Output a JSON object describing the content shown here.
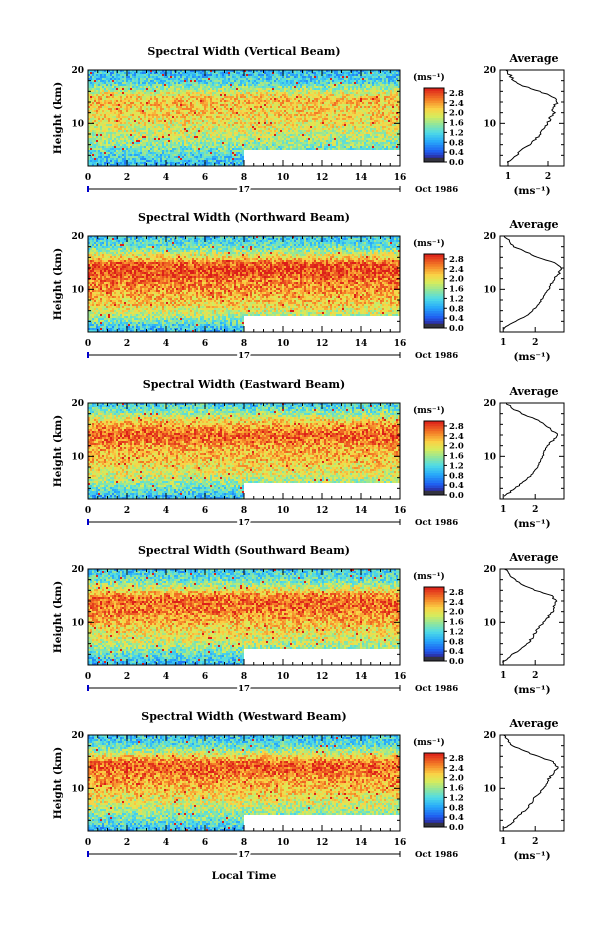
{
  "x_axis_title": "Local Time",
  "chart_data": [
    {
      "type": "heatmap",
      "title": "Spectral Width (Vertical Beam)",
      "ylabel": "Height (km)",
      "ylim": [
        2,
        20
      ],
      "yticks": [
        10,
        20
      ],
      "xlim": [
        0,
        16
      ],
      "xticks": [
        0,
        2,
        4,
        6,
        8,
        10,
        12,
        14,
        16
      ],
      "xtick_labels": [
        "0",
        "2",
        "4",
        "6",
        "8",
        "10",
        "12",
        "14",
        "16"
      ],
      "date_day": "17",
      "date_label": "Oct 1986",
      "no_data_region": {
        "x_from": 8,
        "x_to": 16,
        "y_from": 2,
        "y_to": 5
      },
      "colorbar": {
        "unit_label": "(ms⁻¹)",
        "min": 0,
        "max": 3.0,
        "ticks": [
          "2.8",
          "2.4",
          "2.0",
          "1.6",
          "1.2",
          "0.8",
          "0.4",
          "0.0"
        ]
      },
      "average_profile": {
        "title": "Average",
        "xlabel": "(ms⁻¹)",
        "xlim": [
          0.8,
          2.4
        ],
        "xticks": [
          "1",
          "2"
        ],
        "xtick_values": [
          1,
          2
        ],
        "yticks": [
          "10",
          "20"
        ],
        "heights": [
          2.5,
          3,
          4,
          5,
          6,
          7,
          8,
          9,
          10,
          11,
          12,
          13,
          14,
          15,
          16,
          17,
          18,
          19,
          20
        ],
        "values": [
          1.0,
          1.05,
          1.2,
          1.35,
          1.55,
          1.7,
          1.8,
          1.9,
          2.0,
          2.05,
          2.15,
          2.1,
          2.25,
          2.1,
          1.8,
          1.4,
          1.15,
          1.05,
          0.95
        ]
      }
    },
    {
      "type": "heatmap",
      "title": "Spectral Width (Northward Beam)",
      "ylabel": "Height (km)",
      "ylim": [
        2,
        20
      ],
      "yticks": [
        10,
        20
      ],
      "xlim": [
        0,
        16
      ],
      "xticks": [
        0,
        2,
        4,
        6,
        8,
        10,
        12,
        14,
        16
      ],
      "xtick_labels": [
        "0",
        "2",
        "4",
        "6",
        "8",
        "10",
        "12",
        "14",
        "16"
      ],
      "date_day": "17",
      "date_label": "Oct 1986",
      "no_data_region": {
        "x_from": 8,
        "x_to": 16,
        "y_from": 2,
        "y_to": 5
      },
      "colorbar": {
        "unit_label": "(ms⁻¹)",
        "min": 0,
        "max": 3.0,
        "ticks": [
          "2.8",
          "2.4",
          "2.0",
          "1.6",
          "1.2",
          "0.8",
          "0.4",
          "0.0"
        ]
      },
      "average_profile": {
        "title": "Average",
        "xlabel": "(ms⁻¹)",
        "xlim": [
          0.9,
          2.9
        ],
        "xticks": [
          "1",
          "2"
        ],
        "xtick_values": [
          1,
          2
        ],
        "yticks": [
          "10",
          "20"
        ],
        "heights": [
          2.5,
          3,
          4,
          5,
          6,
          7,
          8,
          9,
          10,
          11,
          12,
          13,
          14,
          15,
          16,
          17,
          18,
          19,
          20
        ],
        "values": [
          1.0,
          1.1,
          1.4,
          1.7,
          1.9,
          2.1,
          2.2,
          2.3,
          2.45,
          2.5,
          2.6,
          2.75,
          2.8,
          2.6,
          2.1,
          1.7,
          1.35,
          1.2,
          1.05
        ]
      }
    },
    {
      "type": "heatmap",
      "title": "Spectral Width (Eastward Beam)",
      "ylabel": "Height (km)",
      "ylim": [
        2,
        20
      ],
      "yticks": [
        10,
        20
      ],
      "xlim": [
        0,
        16
      ],
      "xticks": [
        0,
        2,
        4,
        6,
        8,
        10,
        12,
        14,
        16
      ],
      "xtick_labels": [
        "0",
        "2",
        "4",
        "6",
        "8",
        "10",
        "12",
        "14",
        "16"
      ],
      "date_day": "17",
      "date_label": "Oct 1986",
      "no_data_region": {
        "x_from": 8,
        "x_to": 16,
        "y_from": 2,
        "y_to": 5
      },
      "colorbar": {
        "unit_label": "(ms⁻¹)",
        "min": 0,
        "max": 3.0,
        "ticks": [
          "2.8",
          "2.4",
          "2.0",
          "1.6",
          "1.2",
          "0.8",
          "0.4",
          "0.0"
        ]
      },
      "average_profile": {
        "title": "Average",
        "xlabel": "(ms⁻¹)",
        "xlim": [
          0.9,
          2.9
        ],
        "xticks": [
          "1",
          "2"
        ],
        "xtick_values": [
          1,
          2
        ],
        "yticks": [
          "10",
          "20"
        ],
        "heights": [
          2.5,
          3,
          4,
          5,
          6,
          7,
          8,
          9,
          10,
          11,
          12,
          13,
          14,
          15,
          16,
          17,
          18,
          19,
          20
        ],
        "values": [
          1.0,
          1.15,
          1.35,
          1.6,
          1.8,
          1.95,
          2.05,
          2.15,
          2.25,
          2.3,
          2.4,
          2.55,
          2.7,
          2.5,
          2.3,
          2.0,
          1.6,
          1.3,
          1.1
        ]
      }
    },
    {
      "type": "heatmap",
      "title": "Spectral Width (Southward Beam)",
      "ylabel": "Height (km)",
      "ylim": [
        2,
        20
      ],
      "yticks": [
        10,
        20
      ],
      "xlim": [
        0,
        16
      ],
      "xticks": [
        0,
        2,
        4,
        6,
        8,
        10,
        12,
        14,
        16
      ],
      "xtick_labels": [
        "0",
        "2",
        "4",
        "6",
        "8",
        "10",
        "12",
        "14",
        "16"
      ],
      "date_day": "17",
      "date_label": "Oct 1986",
      "no_data_region": {
        "x_from": 8,
        "x_to": 16,
        "y_from": 2,
        "y_to": 5
      },
      "colorbar": {
        "unit_label": "(ms⁻¹)",
        "min": 0,
        "max": 3.0,
        "ticks": [
          "2.8",
          "2.4",
          "2.0",
          "1.6",
          "1.2",
          "0.8",
          "0.4",
          "0.0"
        ]
      },
      "average_profile": {
        "title": "Average",
        "xlabel": "(ms⁻¹)",
        "xlim": [
          0.9,
          2.9
        ],
        "xticks": [
          "1",
          "2"
        ],
        "xtick_values": [
          1,
          2
        ],
        "yticks": [
          "10",
          "20"
        ],
        "heights": [
          2.5,
          3,
          4,
          5,
          6,
          7,
          8,
          9,
          10,
          11,
          12,
          13,
          14,
          15,
          16,
          17,
          18,
          19,
          20
        ],
        "values": [
          1.0,
          1.1,
          1.3,
          1.55,
          1.75,
          1.9,
          2.0,
          2.1,
          2.25,
          2.4,
          2.55,
          2.6,
          2.65,
          2.5,
          2.0,
          1.65,
          1.35,
          1.2,
          1.05
        ]
      }
    },
    {
      "type": "heatmap",
      "title": "Spectral Width (Westward Beam)",
      "ylabel": "Height (km)",
      "ylim": [
        2,
        20
      ],
      "yticks": [
        10,
        20
      ],
      "xlim": [
        0,
        16
      ],
      "xticks": [
        0,
        2,
        4,
        6,
        8,
        10,
        12,
        14,
        16
      ],
      "xtick_labels": [
        "0",
        "2",
        "4",
        "6",
        "8",
        "10",
        "12",
        "14",
        "16"
      ],
      "date_day": "17",
      "date_label": "Oct 1986",
      "no_data_region": {
        "x_from": 8,
        "x_to": 16,
        "y_from": 2,
        "y_to": 5
      },
      "colorbar": {
        "unit_label": "(ms⁻¹)",
        "min": 0,
        "max": 3.0,
        "ticks": [
          "2.8",
          "2.4",
          "2.0",
          "1.6",
          "1.2",
          "0.8",
          "0.4",
          "0.0"
        ]
      },
      "average_profile": {
        "title": "Average",
        "xlabel": "(ms⁻¹)",
        "xlim": [
          0.9,
          2.9
        ],
        "xticks": [
          "1",
          "2"
        ],
        "xtick_values": [
          1,
          2
        ],
        "yticks": [
          "10",
          "20"
        ],
        "heights": [
          2.5,
          3,
          4,
          5,
          6,
          7,
          8,
          9,
          10,
          11,
          12,
          13,
          14,
          15,
          16,
          17,
          18,
          19,
          20
        ],
        "values": [
          1.0,
          1.15,
          1.35,
          1.5,
          1.7,
          1.85,
          1.95,
          2.1,
          2.25,
          2.35,
          2.45,
          2.6,
          2.7,
          2.55,
          2.1,
          1.65,
          1.3,
          1.15,
          1.0
        ]
      }
    }
  ]
}
